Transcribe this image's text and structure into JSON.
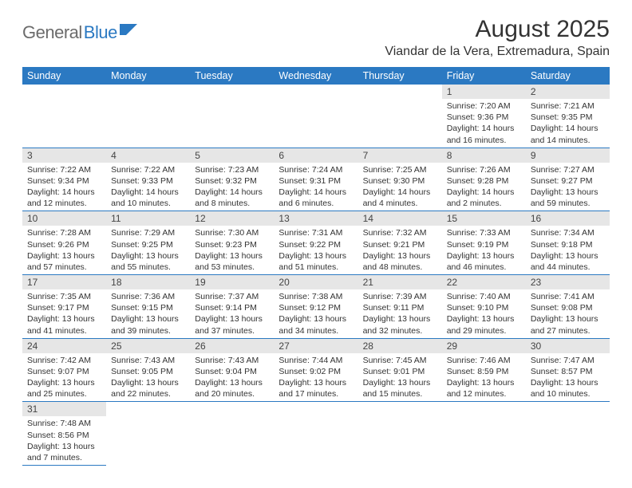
{
  "logo": {
    "part1": "General",
    "part2": "Blue"
  },
  "title": "August 2025",
  "location": "Viandar de la Vera, Extremadura, Spain",
  "colors": {
    "brand": "#2b79c2",
    "header_bg": "#2b79c2",
    "daynum_bg": "#e6e6e6",
    "text": "#333333",
    "logo_gray": "#6b6b6b"
  },
  "weekdays": [
    "Sunday",
    "Monday",
    "Tuesday",
    "Wednesday",
    "Thursday",
    "Friday",
    "Saturday"
  ],
  "weeks": [
    [
      {
        "n": "",
        "sunrise": "",
        "sunset": "",
        "daylight": ""
      },
      {
        "n": "",
        "sunrise": "",
        "sunset": "",
        "daylight": ""
      },
      {
        "n": "",
        "sunrise": "",
        "sunset": "",
        "daylight": ""
      },
      {
        "n": "",
        "sunrise": "",
        "sunset": "",
        "daylight": ""
      },
      {
        "n": "",
        "sunrise": "",
        "sunset": "",
        "daylight": ""
      },
      {
        "n": "1",
        "sunrise": "Sunrise: 7:20 AM",
        "sunset": "Sunset: 9:36 PM",
        "daylight": "Daylight: 14 hours and 16 minutes."
      },
      {
        "n": "2",
        "sunrise": "Sunrise: 7:21 AM",
        "sunset": "Sunset: 9:35 PM",
        "daylight": "Daylight: 14 hours and 14 minutes."
      }
    ],
    [
      {
        "n": "3",
        "sunrise": "Sunrise: 7:22 AM",
        "sunset": "Sunset: 9:34 PM",
        "daylight": "Daylight: 14 hours and 12 minutes."
      },
      {
        "n": "4",
        "sunrise": "Sunrise: 7:22 AM",
        "sunset": "Sunset: 9:33 PM",
        "daylight": "Daylight: 14 hours and 10 minutes."
      },
      {
        "n": "5",
        "sunrise": "Sunrise: 7:23 AM",
        "sunset": "Sunset: 9:32 PM",
        "daylight": "Daylight: 14 hours and 8 minutes."
      },
      {
        "n": "6",
        "sunrise": "Sunrise: 7:24 AM",
        "sunset": "Sunset: 9:31 PM",
        "daylight": "Daylight: 14 hours and 6 minutes."
      },
      {
        "n": "7",
        "sunrise": "Sunrise: 7:25 AM",
        "sunset": "Sunset: 9:30 PM",
        "daylight": "Daylight: 14 hours and 4 minutes."
      },
      {
        "n": "8",
        "sunrise": "Sunrise: 7:26 AM",
        "sunset": "Sunset: 9:28 PM",
        "daylight": "Daylight: 14 hours and 2 minutes."
      },
      {
        "n": "9",
        "sunrise": "Sunrise: 7:27 AM",
        "sunset": "Sunset: 9:27 PM",
        "daylight": "Daylight: 13 hours and 59 minutes."
      }
    ],
    [
      {
        "n": "10",
        "sunrise": "Sunrise: 7:28 AM",
        "sunset": "Sunset: 9:26 PM",
        "daylight": "Daylight: 13 hours and 57 minutes."
      },
      {
        "n": "11",
        "sunrise": "Sunrise: 7:29 AM",
        "sunset": "Sunset: 9:25 PM",
        "daylight": "Daylight: 13 hours and 55 minutes."
      },
      {
        "n": "12",
        "sunrise": "Sunrise: 7:30 AM",
        "sunset": "Sunset: 9:23 PM",
        "daylight": "Daylight: 13 hours and 53 minutes."
      },
      {
        "n": "13",
        "sunrise": "Sunrise: 7:31 AM",
        "sunset": "Sunset: 9:22 PM",
        "daylight": "Daylight: 13 hours and 51 minutes."
      },
      {
        "n": "14",
        "sunrise": "Sunrise: 7:32 AM",
        "sunset": "Sunset: 9:21 PM",
        "daylight": "Daylight: 13 hours and 48 minutes."
      },
      {
        "n": "15",
        "sunrise": "Sunrise: 7:33 AM",
        "sunset": "Sunset: 9:19 PM",
        "daylight": "Daylight: 13 hours and 46 minutes."
      },
      {
        "n": "16",
        "sunrise": "Sunrise: 7:34 AM",
        "sunset": "Sunset: 9:18 PM",
        "daylight": "Daylight: 13 hours and 44 minutes."
      }
    ],
    [
      {
        "n": "17",
        "sunrise": "Sunrise: 7:35 AM",
        "sunset": "Sunset: 9:17 PM",
        "daylight": "Daylight: 13 hours and 41 minutes."
      },
      {
        "n": "18",
        "sunrise": "Sunrise: 7:36 AM",
        "sunset": "Sunset: 9:15 PM",
        "daylight": "Daylight: 13 hours and 39 minutes."
      },
      {
        "n": "19",
        "sunrise": "Sunrise: 7:37 AM",
        "sunset": "Sunset: 9:14 PM",
        "daylight": "Daylight: 13 hours and 37 minutes."
      },
      {
        "n": "20",
        "sunrise": "Sunrise: 7:38 AM",
        "sunset": "Sunset: 9:12 PM",
        "daylight": "Daylight: 13 hours and 34 minutes."
      },
      {
        "n": "21",
        "sunrise": "Sunrise: 7:39 AM",
        "sunset": "Sunset: 9:11 PM",
        "daylight": "Daylight: 13 hours and 32 minutes."
      },
      {
        "n": "22",
        "sunrise": "Sunrise: 7:40 AM",
        "sunset": "Sunset: 9:10 PM",
        "daylight": "Daylight: 13 hours and 29 minutes."
      },
      {
        "n": "23",
        "sunrise": "Sunrise: 7:41 AM",
        "sunset": "Sunset: 9:08 PM",
        "daylight": "Daylight: 13 hours and 27 minutes."
      }
    ],
    [
      {
        "n": "24",
        "sunrise": "Sunrise: 7:42 AM",
        "sunset": "Sunset: 9:07 PM",
        "daylight": "Daylight: 13 hours and 25 minutes."
      },
      {
        "n": "25",
        "sunrise": "Sunrise: 7:43 AM",
        "sunset": "Sunset: 9:05 PM",
        "daylight": "Daylight: 13 hours and 22 minutes."
      },
      {
        "n": "26",
        "sunrise": "Sunrise: 7:43 AM",
        "sunset": "Sunset: 9:04 PM",
        "daylight": "Daylight: 13 hours and 20 minutes."
      },
      {
        "n": "27",
        "sunrise": "Sunrise: 7:44 AM",
        "sunset": "Sunset: 9:02 PM",
        "daylight": "Daylight: 13 hours and 17 minutes."
      },
      {
        "n": "28",
        "sunrise": "Sunrise: 7:45 AM",
        "sunset": "Sunset: 9:01 PM",
        "daylight": "Daylight: 13 hours and 15 minutes."
      },
      {
        "n": "29",
        "sunrise": "Sunrise: 7:46 AM",
        "sunset": "Sunset: 8:59 PM",
        "daylight": "Daylight: 13 hours and 12 minutes."
      },
      {
        "n": "30",
        "sunrise": "Sunrise: 7:47 AM",
        "sunset": "Sunset: 8:57 PM",
        "daylight": "Daylight: 13 hours and 10 minutes."
      }
    ],
    [
      {
        "n": "31",
        "sunrise": "Sunrise: 7:48 AM",
        "sunset": "Sunset: 8:56 PM",
        "daylight": "Daylight: 13 hours and 7 minutes."
      },
      {
        "n": "",
        "sunrise": "",
        "sunset": "",
        "daylight": ""
      },
      {
        "n": "",
        "sunrise": "",
        "sunset": "",
        "daylight": ""
      },
      {
        "n": "",
        "sunrise": "",
        "sunset": "",
        "daylight": ""
      },
      {
        "n": "",
        "sunrise": "",
        "sunset": "",
        "daylight": ""
      },
      {
        "n": "",
        "sunrise": "",
        "sunset": "",
        "daylight": ""
      },
      {
        "n": "",
        "sunrise": "",
        "sunset": "",
        "daylight": ""
      }
    ]
  ]
}
